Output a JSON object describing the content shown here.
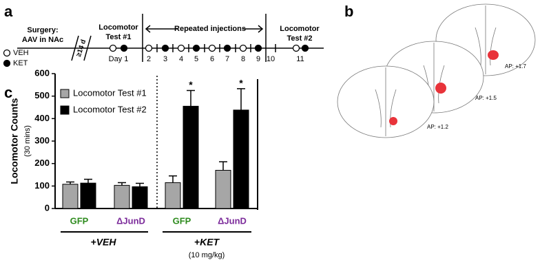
{
  "panel_a": {
    "letter": "a",
    "surgery": [
      "Surgery:",
      "AAV in NAc"
    ],
    "interval": "≥14 d",
    "legend": [
      "VEH",
      "KET"
    ],
    "test1": [
      "Locomotor",
      "Test #1"
    ],
    "repeated": "Repeated injections",
    "test2": [
      "Locomotor",
      "Test #2"
    ],
    "days": [
      "Day 1",
      "2",
      "3",
      "4",
      "5",
      "6",
      "7",
      "8",
      "9",
      "10",
      "11"
    ]
  },
  "panel_b": {
    "letter": "b",
    "sections": [
      "AP: +1.7",
      "AP: +1.5",
      "AP: +1.2"
    ]
  },
  "panel_c_letter": "c",
  "chart_data": {
    "type": "bar",
    "ylabel": "Locomotor Counts",
    "ylabel_sub": "(30 mins)",
    "categories": [
      "GFP",
      "ΔJunD",
      "GFP",
      "ΔJunD"
    ],
    "category_colors": [
      "#2e8b1e",
      "#7b2a9a",
      "#2e8b1e",
      "#7b2a9a"
    ],
    "groups": [
      {
        "label": "+VEH"
      },
      {
        "label": "+KET",
        "sublabel": "(10 mg/kg)"
      }
    ],
    "series": [
      {
        "name": "Locomotor Test #1",
        "color": "#a6a6a6",
        "values": [
          108,
          103,
          115,
          170
        ],
        "errors": [
          10,
          12,
          30,
          38
        ]
      },
      {
        "name": "Locomotor Test #2",
        "color": "#000000",
        "values": [
          113,
          97,
          455,
          438
        ],
        "errors": [
          17,
          15,
          70,
          95
        ],
        "significance": [
          null,
          null,
          "*",
          "*"
        ]
      }
    ],
    "ylim": [
      0,
      600
    ],
    "yticks": [
      0,
      100,
      200,
      300,
      400,
      500,
      600
    ],
    "legend": "upper left"
  }
}
